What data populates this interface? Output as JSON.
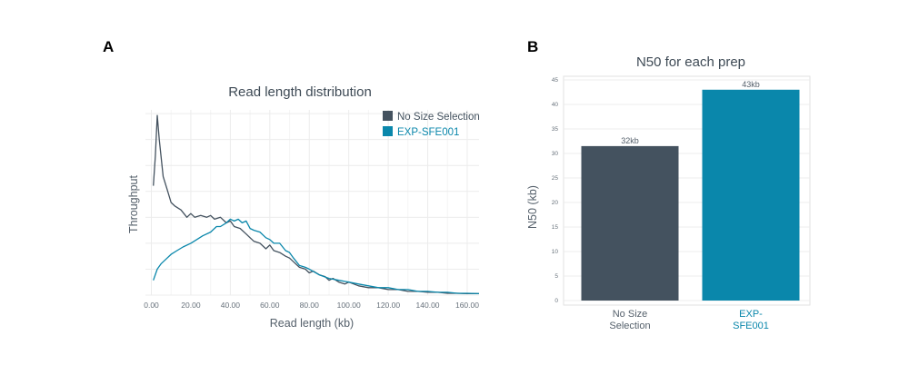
{
  "panel_a_letter": "A",
  "panel_b_letter": "B",
  "colors": {
    "no_size": "#44525f",
    "sfe": "#0a87ab",
    "grid": "#ececec",
    "text": "#55606b"
  },
  "chart_data": [
    {
      "type": "line",
      "title": "Read length distribution",
      "xlabel": "Read length (kb)",
      "ylabel": "Throughput",
      "xlim": [
        -3,
        166
      ],
      "ylim": [
        0,
        100
      ],
      "xticks": [
        0,
        20,
        40,
        60,
        80,
        100,
        120,
        140,
        160
      ],
      "xtick_labels": [
        "0.00",
        "20.00",
        "40.00",
        "60.00",
        "80.00",
        "100.00",
        "120.00",
        "140.00",
        "160.00"
      ],
      "ygrid": [
        0,
        14,
        28,
        42,
        56,
        70,
        84,
        98
      ],
      "legend_position": "top-right",
      "series": [
        {
          "name": "No Size Selection",
          "color_key": "no_size",
          "x": [
            1,
            2,
            3,
            4,
            6,
            8,
            10,
            12,
            15,
            18,
            20,
            22,
            25,
            28,
            30,
            32,
            35,
            38,
            40,
            42,
            45,
            48,
            50,
            52,
            55,
            58,
            60,
            62,
            65,
            68,
            70,
            72,
            75,
            78,
            80,
            82,
            85,
            88,
            90,
            92,
            95,
            98,
            100,
            105,
            110,
            115,
            120,
            125,
            130,
            135,
            140,
            145,
            150,
            155,
            160,
            166
          ],
          "y": [
            59,
            75,
            97,
            84,
            64,
            57,
            50,
            48,
            46,
            42,
            44,
            42,
            43,
            42,
            43,
            41,
            42,
            39,
            40,
            37,
            36,
            33,
            31,
            29,
            28,
            25,
            27,
            24,
            23,
            21,
            20,
            18,
            15,
            14,
            12,
            13,
            11,
            10,
            8,
            9,
            7,
            6,
            7,
            5,
            4,
            4,
            3,
            3,
            2,
            2,
            1.5,
            1.5,
            1,
            1,
            0.8,
            0.8
          ]
        },
        {
          "name": "EXP-SFE001",
          "color_key": "sfe",
          "x": [
            1,
            3,
            5,
            8,
            10,
            13,
            16,
            20,
            23,
            26,
            30,
            33,
            35,
            38,
            40,
            42,
            44,
            46,
            48,
            50,
            52,
            55,
            58,
            60,
            62,
            65,
            68,
            70,
            72,
            75,
            78,
            80,
            85,
            90,
            95,
            100,
            105,
            110,
            115,
            120,
            125,
            130,
            135,
            140,
            145,
            150,
            155,
            160,
            166
          ],
          "y": [
            8,
            14,
            17,
            20,
            22,
            24,
            26,
            28,
            30,
            32,
            34,
            37,
            37,
            39,
            41,
            40,
            41,
            39,
            40,
            36,
            35,
            34,
            31,
            30,
            28,
            28,
            24,
            23,
            20,
            16,
            15,
            14,
            11,
            9,
            8,
            7,
            6,
            5,
            4,
            4,
            3,
            3,
            2,
            2,
            1.5,
            1.5,
            1,
            1,
            0.8
          ]
        }
      ]
    },
    {
      "type": "bar",
      "title": "N50 for each prep",
      "xlabel": "",
      "ylabel": "N50 (kb)",
      "ylim": [
        0,
        45
      ],
      "yticks": [
        0,
        5,
        10,
        15,
        20,
        25,
        30,
        35,
        40,
        45
      ],
      "categories": [
        "No Size Selection",
        "EXP-SFE001"
      ],
      "category_lines": [
        [
          "No Size",
          "Selection"
        ],
        [
          "EXP-",
          "SFE001"
        ]
      ],
      "values": [
        31.5,
        43
      ],
      "data_labels": [
        "32kb",
        "43kb"
      ],
      "color_keys": [
        "no_size",
        "sfe"
      ]
    }
  ]
}
